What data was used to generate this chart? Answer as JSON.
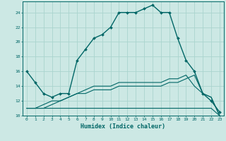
{
  "xlabel": "Humidex (Indice chaleur)",
  "bg_color": "#cce8e4",
  "grid_color": "#aad4ce",
  "line_color": "#006666",
  "xlim": [
    -0.5,
    23.5
  ],
  "ylim": [
    10,
    25.5
  ],
  "xticks": [
    0,
    1,
    2,
    3,
    4,
    5,
    6,
    7,
    8,
    9,
    10,
    11,
    12,
    13,
    14,
    15,
    16,
    17,
    18,
    19,
    20,
    21,
    22,
    23
  ],
  "yticks": [
    10,
    12,
    14,
    16,
    18,
    20,
    22,
    24
  ],
  "curve1_x": [
    0,
    1,
    2,
    3,
    4,
    5,
    6,
    7,
    8,
    9,
    10,
    11,
    12,
    13,
    14,
    15,
    16,
    17,
    18,
    19,
    20,
    21,
    22,
    23
  ],
  "curve1_y": [
    16,
    14.5,
    13,
    12.5,
    13,
    13,
    17.5,
    19,
    20.5,
    21,
    22,
    24,
    24,
    24,
    24.5,
    25,
    24,
    24,
    20.5,
    17.5,
    16,
    13,
    12,
    10.5
  ],
  "curve2_x": [
    0,
    1,
    2,
    3,
    4,
    5,
    6,
    7,
    8,
    9,
    10,
    11,
    12,
    13,
    14,
    15,
    16,
    17,
    18,
    19,
    20,
    21,
    22,
    23
  ],
  "curve2_y": [
    11,
    11,
    11,
    11,
    11,
    11,
    11,
    11,
    11,
    11,
    11,
    11,
    11,
    11,
    11,
    11,
    11,
    11,
    11,
    11,
    11,
    11,
    11,
    10
  ],
  "curve3_x": [
    0,
    1,
    2,
    3,
    4,
    5,
    6,
    7,
    8,
    9,
    10,
    11,
    12,
    13,
    14,
    15,
    16,
    17,
    18,
    19,
    20,
    21,
    22,
    23
  ],
  "curve3_y": [
    11,
    11,
    11,
    11.5,
    12,
    12.5,
    13,
    13,
    13.5,
    13.5,
    13.5,
    14,
    14,
    14,
    14,
    14,
    14,
    14.5,
    14.5,
    15,
    15.5,
    13,
    12.5,
    10
  ],
  "curve4_x": [
    0,
    1,
    2,
    3,
    4,
    5,
    6,
    7,
    8,
    9,
    10,
    11,
    12,
    13,
    14,
    15,
    16,
    17,
    18,
    19,
    20,
    21,
    22,
    23
  ],
  "curve4_y": [
    11,
    11,
    11.5,
    12,
    12,
    12.5,
    13,
    13.5,
    14,
    14,
    14,
    14.5,
    14.5,
    14.5,
    14.5,
    14.5,
    14.5,
    15,
    15,
    15.5,
    14,
    13,
    12.5,
    10
  ]
}
